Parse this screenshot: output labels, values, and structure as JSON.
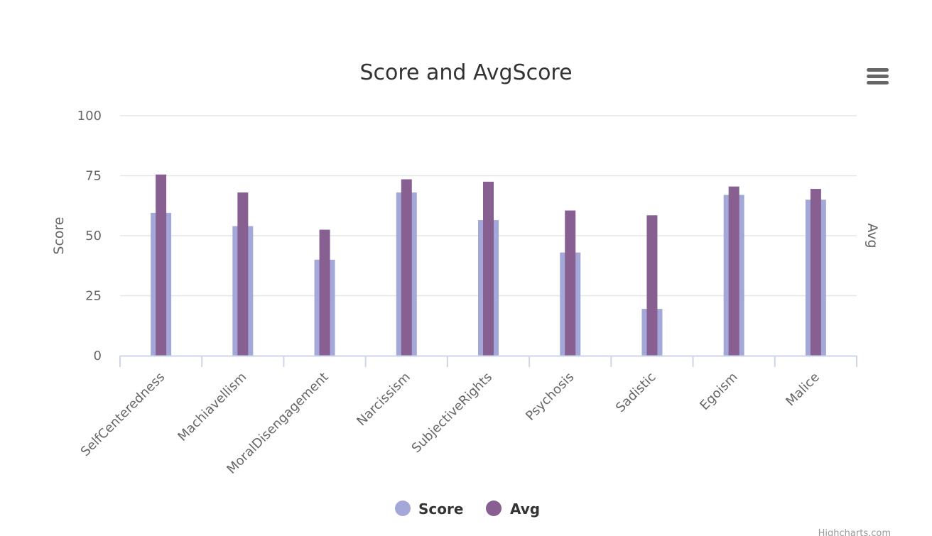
{
  "chart_data": {
    "type": "bar",
    "title": "Score and AvgScore",
    "categories": [
      "SelfCenteredness",
      "Machiavellism",
      "MoralDisengagement",
      "Narcissism",
      "SubjectiveRights",
      "Psychosis",
      "Sadistic",
      "Egoism",
      "Malice"
    ],
    "series": [
      {
        "name": "Score",
        "color": "#a4a8d8",
        "values": [
          59.5,
          54,
          40,
          68,
          56.5,
          43,
          19.5,
          67,
          65
        ]
      },
      {
        "name": "Avg",
        "color": "#875f90",
        "values": [
          75.5,
          68,
          52.5,
          73.5,
          72.5,
          60.5,
          58.5,
          70.5,
          69.5
        ]
      }
    ],
    "ylabel": "Score",
    "y2label": "Avg",
    "ylim": [
      0,
      100
    ],
    "yticks": [
      "0",
      "25",
      "50",
      "75",
      "100"
    ],
    "ytick_values": [
      0,
      25,
      50,
      75,
      100
    ],
    "grid": true,
    "legend": "bottom-center"
  },
  "credits": "Highcharts.com",
  "menu": {
    "icon": "hamburger-menu-icon"
  },
  "colors": {
    "grid": "#e6e6e6",
    "axis": "#ccd6eb"
  }
}
